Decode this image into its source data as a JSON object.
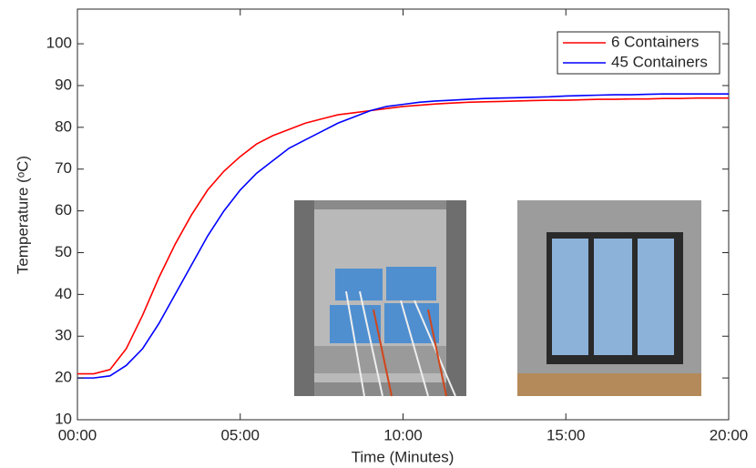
{
  "chart_data": {
    "type": "line",
    "xlabel": "Time (Minutes)",
    "ylabel": "Temperature (ᵒC)",
    "x": [
      0,
      0.5,
      1,
      1.5,
      2,
      2.5,
      3,
      3.5,
      4,
      4.5,
      5,
      5.5,
      6,
      6.5,
      7,
      7.5,
      8,
      8.5,
      9,
      9.5,
      10,
      10.5,
      11,
      11.5,
      12,
      12.5,
      13,
      13.5,
      14,
      14.5,
      15,
      15.5,
      16,
      16.5,
      17,
      17.5,
      18,
      18.5,
      19,
      19.5,
      20
    ],
    "series": [
      {
        "name": "6 Containers",
        "color": "#ff0000",
        "values": [
          21,
          21,
          22,
          27,
          35,
          44,
          52,
          59,
          65,
          69.5,
          73,
          76,
          78,
          79.5,
          81,
          82,
          83,
          83.5,
          84,
          84.5,
          85,
          85.3,
          85.6,
          85.8,
          86,
          86.1,
          86.2,
          86.3,
          86.4,
          86.5,
          86.5,
          86.6,
          86.7,
          86.7,
          86.8,
          86.8,
          86.9,
          86.9,
          87,
          87,
          87
        ]
      },
      {
        "name": "45 Containers",
        "color": "#0000ff",
        "values": [
          20,
          20,
          20.5,
          23,
          27,
          33,
          40,
          47,
          54,
          60,
          65,
          69,
          72,
          75,
          77,
          79,
          81,
          82.5,
          84,
          85,
          85.5,
          86,
          86.3,
          86.5,
          86.7,
          86.9,
          87,
          87.1,
          87.2,
          87.3,
          87.5,
          87.6,
          87.7,
          87.8,
          87.8,
          87.9,
          88,
          88,
          88,
          88,
          88
        ]
      }
    ],
    "xlim": [
      0,
      20
    ],
    "xticks": [
      {
        "value": 0,
        "label": "00:00"
      },
      {
        "value": 5,
        "label": "05:00"
      },
      {
        "value": 10,
        "label": "10:00"
      },
      {
        "value": 15,
        "label": "15:00"
      },
      {
        "value": 20,
        "label": "20:00"
      }
    ],
    "ylim": [
      10,
      108.3
    ],
    "yticks": [
      10,
      20,
      30,
      40,
      50,
      60,
      70,
      80,
      90,
      100
    ],
    "grid": false,
    "legend": "upper-right"
  }
}
